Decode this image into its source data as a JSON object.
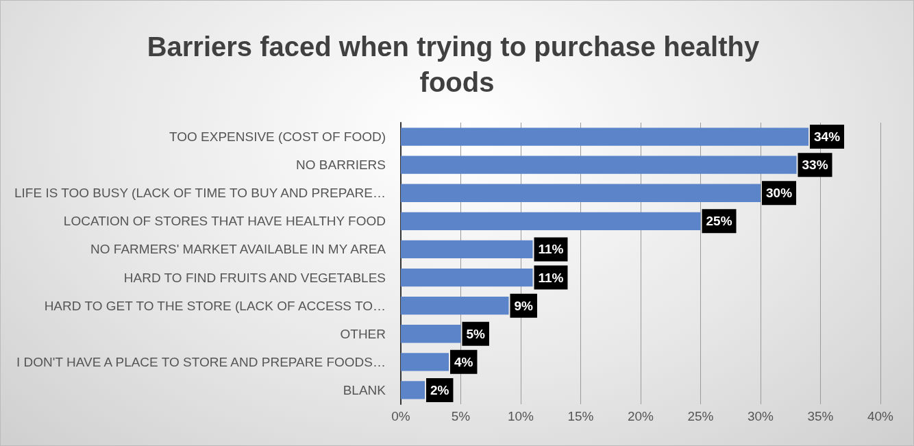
{
  "chart_data": {
    "type": "bar",
    "orientation": "horizontal",
    "title": "Barriers faced when trying to purchase healthy foods",
    "categories": [
      "TOO EXPENSIVE (COST OF FOOD)",
      "NO BARRIERS",
      "LIFE IS TOO BUSY (LACK OF TIME TO BUY AND PREPARE…",
      "LOCATION OF STORES THAT HAVE HEALTHY FOOD",
      "NO FARMERS' MARKET AVAILABLE IN MY AREA",
      "HARD TO FIND FRUITS AND VEGETABLES",
      "HARD TO GET TO THE STORE (LACK OF ACCESS TO…",
      "OTHER",
      "I DON'T HAVE A PLACE TO STORE AND PREPARE FOODS…",
      "BLANK"
    ],
    "values": [
      34,
      33,
      30,
      25,
      11,
      11,
      9,
      5,
      4,
      2
    ],
    "color": "#5b84c9",
    "value_labels": [
      "34%",
      "33%",
      "30%",
      "25%",
      "11%",
      "11%",
      "9%",
      "5%",
      "4%",
      "2%"
    ],
    "xlim": [
      0,
      40
    ],
    "xticks": [
      {
        "value": 0,
        "label": "0%"
      },
      {
        "value": 5,
        "label": "5%"
      },
      {
        "value": 10,
        "label": "10%"
      },
      {
        "value": 15,
        "label": "15%"
      },
      {
        "value": 20,
        "label": "20%"
      },
      {
        "value": 25,
        "label": "25%"
      },
      {
        "value": 30,
        "label": "30%"
      },
      {
        "value": 35,
        "label": "35%"
      },
      {
        "value": 40,
        "label": "40%"
      }
    ],
    "grid": "x"
  }
}
